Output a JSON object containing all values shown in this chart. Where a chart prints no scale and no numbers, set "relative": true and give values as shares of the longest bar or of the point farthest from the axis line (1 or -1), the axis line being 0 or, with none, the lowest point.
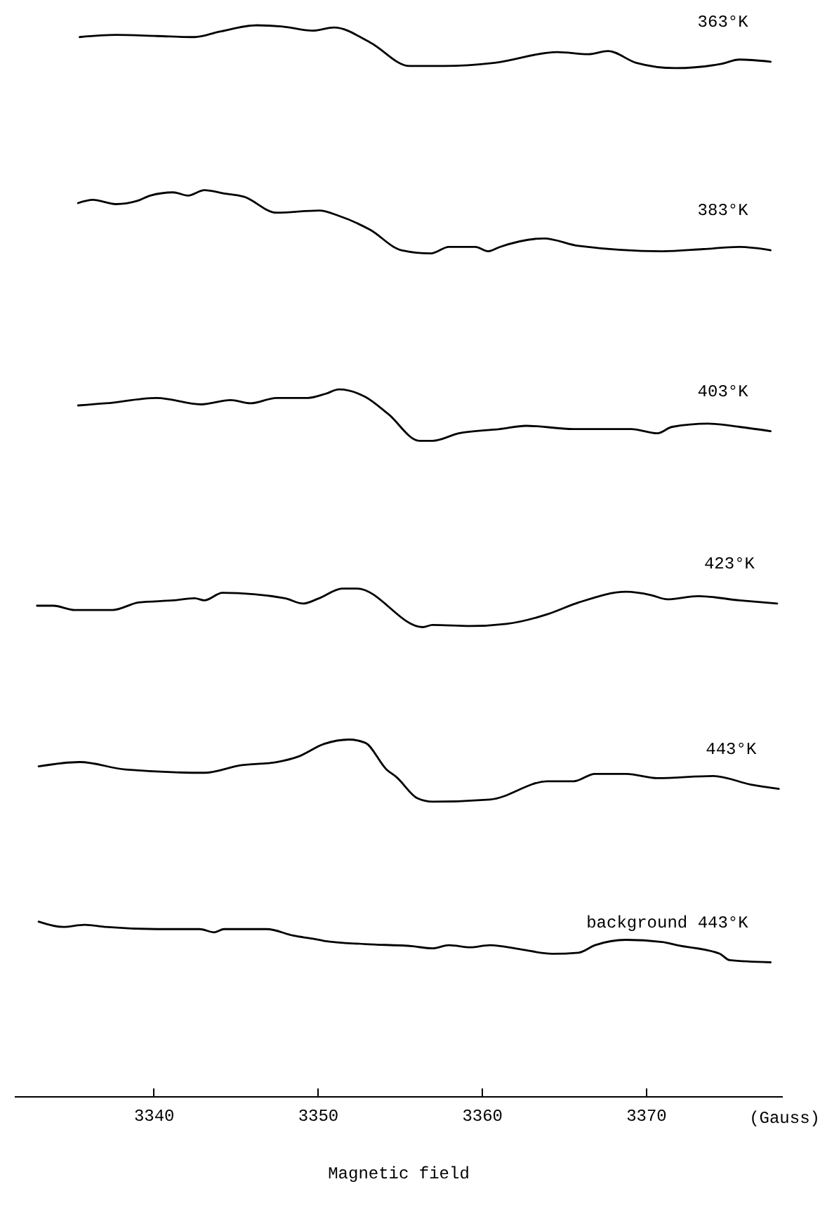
{
  "chart_data": {
    "type": "line",
    "relative": true,
    "xlabel": "Magnetic field",
    "annotations": [
      "(Gauss)"
    ],
    "xlim": [
      3331.5,
      3378.3
    ],
    "xticks": [
      3340,
      3350,
      3360,
      3370
    ],
    "grid": false,
    "marker": "none",
    "series": [
      {
        "name": "363°K",
        "color": "#000000",
        "x": [
          3335.5,
          3337.7,
          3340.2,
          3342.5,
          3344.0,
          3346.3,
          3347.8,
          3349.7,
          3351.0,
          3353.2,
          3355.6,
          3357.7,
          3360.8,
          3364.6,
          3366.5,
          3367.7,
          3369.4,
          3371.8,
          3374.6,
          3375.7,
          3377.6
        ],
        "values": [
          0.989,
          0.991,
          0.99,
          0.989,
          0.994,
          1.0,
          0.999,
          0.995,
          0.998,
          0.984,
          0.962,
          0.962,
          0.965,
          0.975,
          0.973,
          0.976,
          0.965,
          0.96,
          0.964,
          0.968,
          0.966
        ]
      },
      {
        "name": "383°K",
        "color": "#000000",
        "x": [
          3335.4,
          3336.3,
          3337.7,
          3339.0,
          3339.8,
          3341.2,
          3342.1,
          3343.1,
          3344.3,
          3345.5,
          3347.5,
          3350.1,
          3351.3,
          3353.2,
          3355.1,
          3356.9,
          3358.0,
          3359.6,
          3360.4,
          3361.1,
          3363.8,
          3365.9,
          3371.0,
          3373.5,
          3375.7,
          3377.6
        ],
        "values": [
          0.834,
          0.837,
          0.833,
          0.836,
          0.841,
          0.844,
          0.841,
          0.846,
          0.843,
          0.84,
          0.825,
          0.827,
          0.822,
          0.809,
          0.79,
          0.787,
          0.793,
          0.793,
          0.789,
          0.793,
          0.801,
          0.794,
          0.789,
          0.791,
          0.793,
          0.79
        ]
      },
      {
        "name": "403°K",
        "color": "#000000",
        "x": [
          3335.4,
          3337.1,
          3340.2,
          3342.9,
          3344.7,
          3345.9,
          3347.5,
          3349.4,
          3350.5,
          3351.3,
          3352.9,
          3354.3,
          3356.2,
          3357.0,
          3358.6,
          3361.1,
          3362.7,
          3365.6,
          3369.1,
          3370.7,
          3371.6,
          3373.8,
          3375.7,
          3377.6
        ],
        "values": [
          0.645,
          0.647,
          0.652,
          0.646,
          0.65,
          0.647,
          0.652,
          0.652,
          0.656,
          0.66,
          0.653,
          0.637,
          0.612,
          0.612,
          0.619,
          0.623,
          0.626,
          0.623,
          0.623,
          0.619,
          0.625,
          0.628,
          0.625,
          0.621
        ]
      },
      {
        "name": "423°K",
        "color": "#000000",
        "x": [
          3332.9,
          3333.9,
          3335.2,
          3337.5,
          3339.1,
          3341.2,
          3342.5,
          3343.1,
          3344.2,
          3348.0,
          3349.1,
          3350.1,
          3351.5,
          3352.4,
          3356.4,
          3357.0,
          3359.3,
          3361.5,
          3364.0,
          3365.9,
          3368.8,
          3370.3,
          3371.3,
          3373.2,
          3375.7,
          3378.0
        ],
        "values": [
          0.458,
          0.458,
          0.454,
          0.454,
          0.461,
          0.463,
          0.465,
          0.463,
          0.47,
          0.465,
          0.46,
          0.465,
          0.474,
          0.474,
          0.438,
          0.44,
          0.439,
          0.441,
          0.45,
          0.461,
          0.471,
          0.468,
          0.464,
          0.467,
          0.463,
          0.46
        ]
      },
      {
        "name": "443°K",
        "color": "#000000",
        "x": [
          3333.0,
          3335.5,
          3338.3,
          3343.1,
          3345.3,
          3347.5,
          3348.8,
          3350.4,
          3351.9,
          3352.9,
          3354.2,
          3354.8,
          3356.1,
          3357.0,
          3360.5,
          3364.0,
          3365.6,
          3366.9,
          3368.8,
          3370.7,
          3374.1,
          3376.4,
          3378.1
        ],
        "values": [
          0.308,
          0.312,
          0.305,
          0.302,
          0.309,
          0.312,
          0.317,
          0.329,
          0.333,
          0.33,
          0.305,
          0.298,
          0.278,
          0.275,
          0.277,
          0.294,
          0.294,
          0.301,
          0.301,
          0.297,
          0.299,
          0.291,
          0.287
        ]
      },
      {
        "name": "background 443°K",
        "color": "#000000",
        "x": [
          3333.0,
          3334.5,
          3335.8,
          3337.1,
          3340.2,
          3342.8,
          3343.7,
          3344.3,
          3346.9,
          3348.5,
          3349.7,
          3350.4,
          3352.9,
          3355.8,
          3357.0,
          3358.0,
          3359.3,
          3360.5,
          3362.4,
          3364.3,
          3365.9,
          3366.9,
          3368.8,
          3371.0,
          3371.9,
          3374.5,
          3375.1,
          3377.6
        ],
        "values": [
          0.163,
          0.158,
          0.16,
          0.158,
          0.156,
          0.156,
          0.153,
          0.156,
          0.156,
          0.15,
          0.147,
          0.145,
          0.142,
          0.14,
          0.138,
          0.141,
          0.139,
          0.141,
          0.137,
          0.133,
          0.134,
          0.141,
          0.146,
          0.144,
          0.141,
          0.133,
          0.127,
          0.125
        ]
      }
    ]
  }
}
